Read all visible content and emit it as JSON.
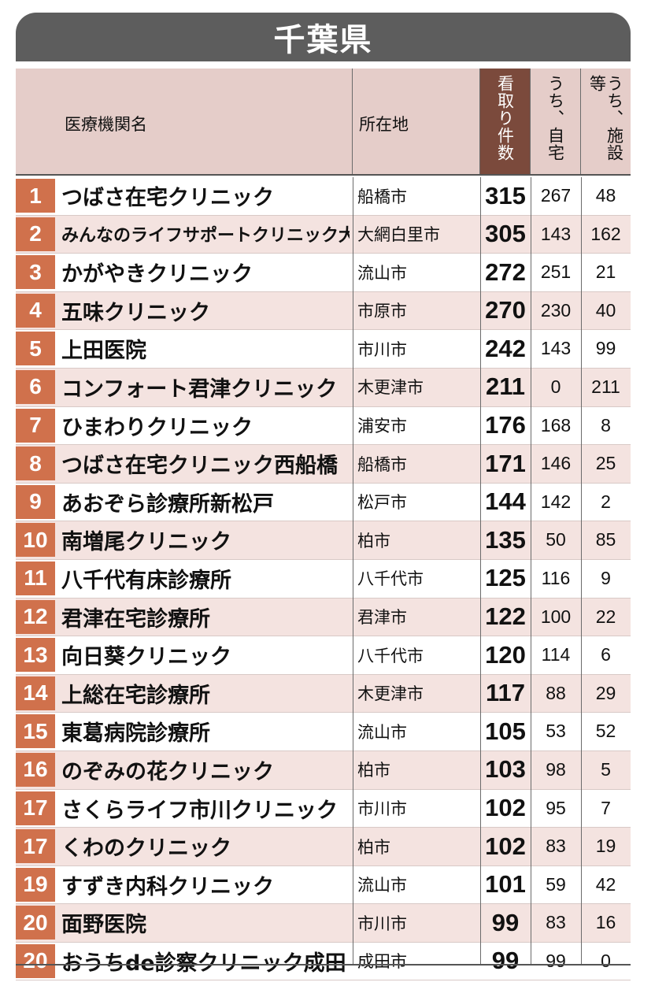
{
  "title": "千葉県",
  "columns": {
    "name": "医療機関名",
    "location": "所在地",
    "total": "看取り件数",
    "home": "うち、自宅",
    "facility": "うち、施設等"
  },
  "rows": [
    {
      "rank": "1",
      "name": "つばさ在宅クリニック",
      "location": "船橋市",
      "total": "315",
      "home": "267",
      "facility": "48"
    },
    {
      "rank": "2",
      "name": "みんなのライフサポートクリニック大網",
      "location": "大網白里市",
      "total": "305",
      "home": "143",
      "facility": "162"
    },
    {
      "rank": "3",
      "name": "かがやきクリニック",
      "location": "流山市",
      "total": "272",
      "home": "251",
      "facility": "21"
    },
    {
      "rank": "4",
      "name": "五味クリニック",
      "location": "市原市",
      "total": "270",
      "home": "230",
      "facility": "40"
    },
    {
      "rank": "5",
      "name": "上田医院",
      "location": "市川市",
      "total": "242",
      "home": "143",
      "facility": "99"
    },
    {
      "rank": "6",
      "name": "コンフォート君津クリニック",
      "location": "木更津市",
      "total": "211",
      "home": "0",
      "facility": "211"
    },
    {
      "rank": "7",
      "name": "ひまわりクリニック",
      "location": "浦安市",
      "total": "176",
      "home": "168",
      "facility": "8"
    },
    {
      "rank": "8",
      "name": "つばさ在宅クリニック西船橋",
      "location": "船橋市",
      "total": "171",
      "home": "146",
      "facility": "25"
    },
    {
      "rank": "9",
      "name": "あおぞら診療所新松戸",
      "location": "松戸市",
      "total": "144",
      "home": "142",
      "facility": "2"
    },
    {
      "rank": "10",
      "name": "南増尾クリニック",
      "location": "柏市",
      "total": "135",
      "home": "50",
      "facility": "85"
    },
    {
      "rank": "11",
      "name": "八千代有床診療所",
      "location": "八千代市",
      "total": "125",
      "home": "116",
      "facility": "9"
    },
    {
      "rank": "12",
      "name": "君津在宅診療所",
      "location": "君津市",
      "total": "122",
      "home": "100",
      "facility": "22"
    },
    {
      "rank": "13",
      "name": "向日葵クリニック",
      "location": "八千代市",
      "total": "120",
      "home": "114",
      "facility": "6"
    },
    {
      "rank": "14",
      "name": "上総在宅診療所",
      "location": "木更津市",
      "total": "117",
      "home": "88",
      "facility": "29"
    },
    {
      "rank": "15",
      "name": "東葛病院診療所",
      "location": "流山市",
      "total": "105",
      "home": "53",
      "facility": "52"
    },
    {
      "rank": "16",
      "name": "のぞみの花クリニック",
      "location": "柏市",
      "total": "103",
      "home": "98",
      "facility": "5"
    },
    {
      "rank": "17",
      "name": "さくらライフ市川クリニック",
      "location": "市川市",
      "total": "102",
      "home": "95",
      "facility": "7"
    },
    {
      "rank": "17",
      "name": "くわのクリニック",
      "location": "柏市",
      "total": "102",
      "home": "83",
      "facility": "19"
    },
    {
      "rank": "19",
      "name": "すずき内科クリニック",
      "location": "流山市",
      "total": "101",
      "home": "59",
      "facility": "42"
    },
    {
      "rank": "20",
      "name": "面野医院",
      "location": "市川市",
      "total": "99",
      "home": "83",
      "facility": "16"
    },
    {
      "rank": "20",
      "name": "おうちde診察クリニック成田",
      "location": "成田市",
      "total": "99",
      "home": "99",
      "facility": "0"
    }
  ]
}
